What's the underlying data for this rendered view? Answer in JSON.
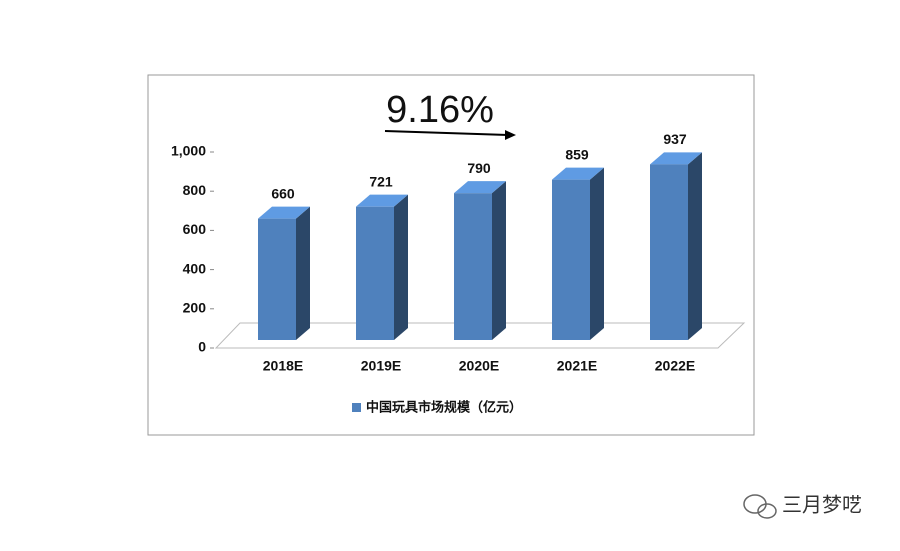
{
  "chart_data": {
    "type": "bar3d",
    "annotation": "9.16%",
    "categories": [
      "2018E",
      "2019E",
      "2020E",
      "2021E",
      "2022E"
    ],
    "series": [
      {
        "name": "中国玩具市场规模（亿元）",
        "color": "#4f81bd",
        "values": [
          660,
          721,
          790,
          859,
          937
        ]
      }
    ],
    "ylim": [
      0,
      1000
    ],
    "yticks": [
      0,
      200,
      400,
      600,
      800,
      {
        "value": 1000,
        "label": "1,000"
      }
    ],
    "legend": "bottom"
  },
  "watermark": "三月梦呓"
}
